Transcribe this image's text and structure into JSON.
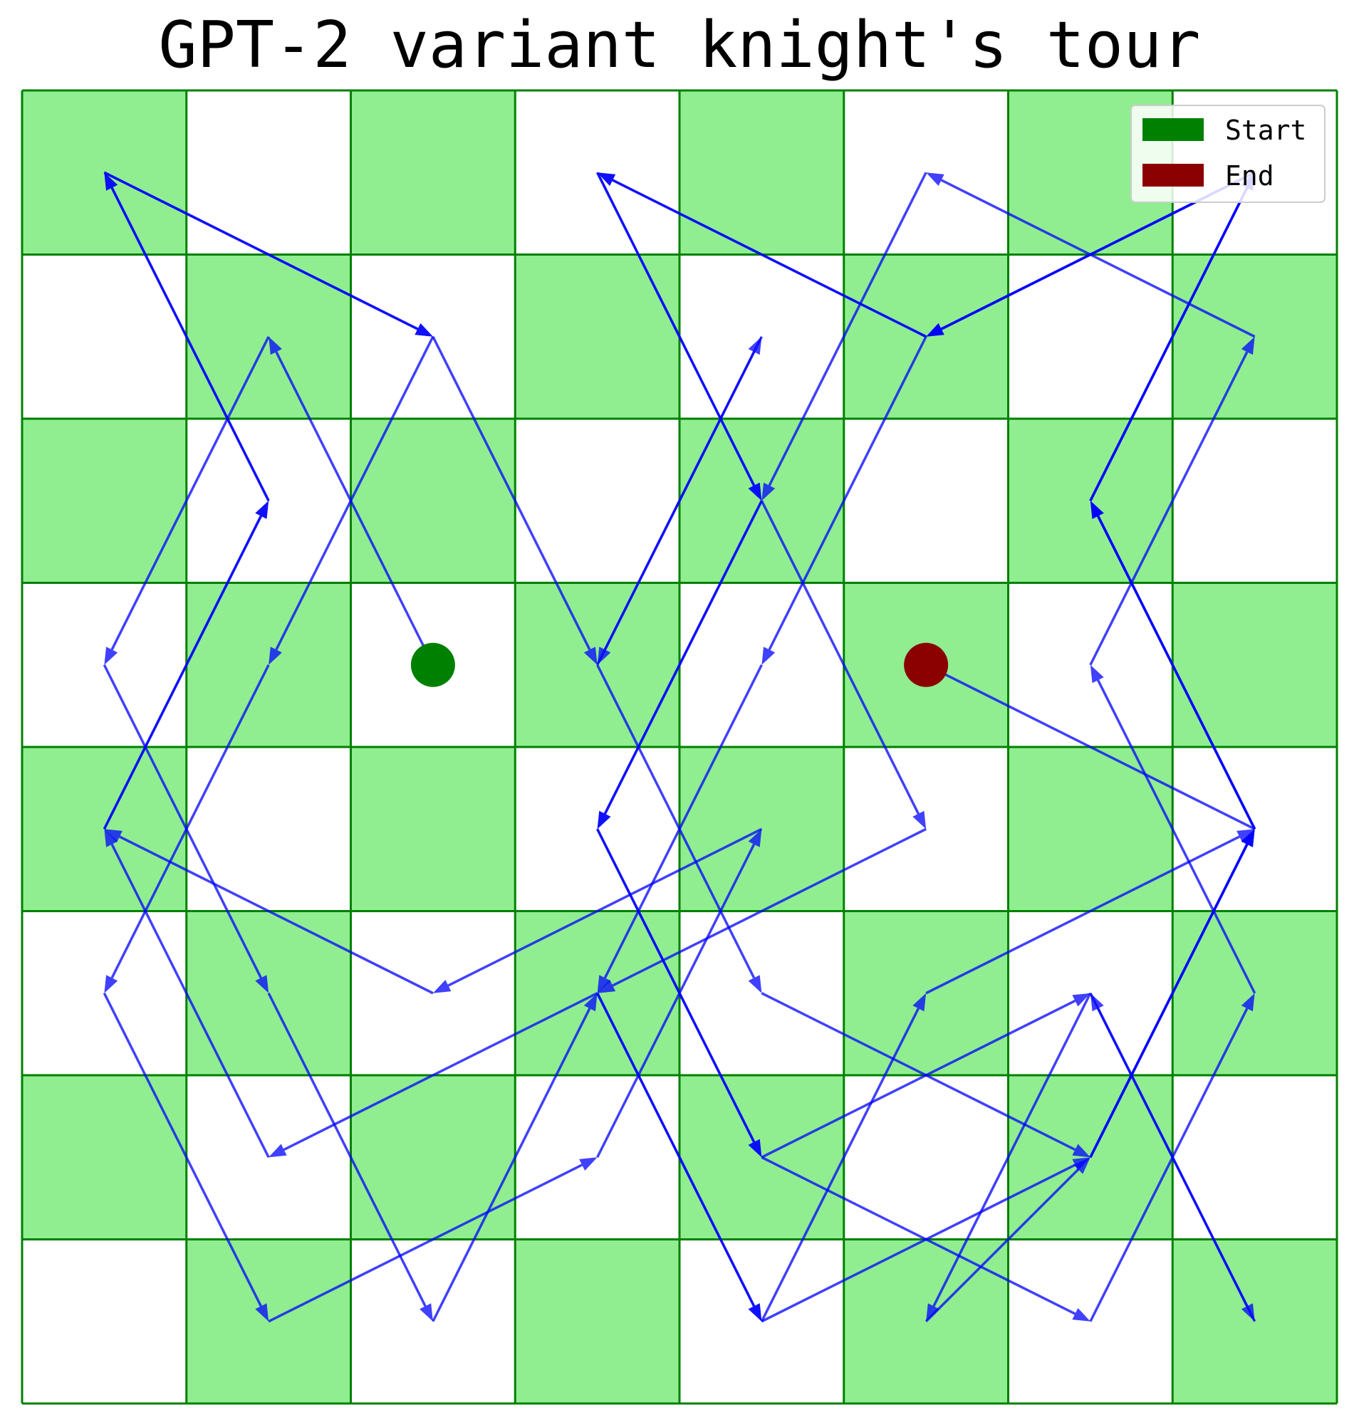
{
  "chart_data": {
    "type": "scatter",
    "title": "GPT-2 variant knight's tour",
    "board_size": 8,
    "grid": true,
    "colors": {
      "light_square": "#ffffff",
      "dark_square": "#90ee90",
      "grid_line": "#008000",
      "path": "#0000ff",
      "start": "#008000",
      "end": "#8b0000"
    },
    "legend": {
      "placement": "top-right",
      "entries": [
        {
          "label": "Start",
          "color": "#008000"
        },
        {
          "label": "End",
          "color": "#8b0000"
        }
      ]
    },
    "start": [
      2,
      3
    ],
    "end": [
      5,
      3
    ],
    "path": [
      [
        2,
        3
      ],
      [
        1,
        1
      ],
      [
        0,
        3
      ],
      [
        1,
        5
      ],
      [
        2,
        7
      ],
      [
        3,
        5
      ],
      [
        4,
        7
      ],
      [
        5,
        5
      ],
      [
        7,
        4
      ],
      [
        6,
        2
      ],
      [
        7,
        0
      ],
      [
        5,
        1
      ],
      [
        3,
        0
      ],
      [
        4,
        2
      ],
      [
        3,
        4
      ],
      [
        4,
        6
      ],
      [
        6,
        5
      ],
      [
        7,
        7
      ],
      [
        6,
        5
      ],
      [
        5,
        7
      ],
      [
        6,
        6
      ],
      [
        7,
        4
      ],
      [
        6,
        2
      ],
      [
        7,
        0
      ],
      [
        5,
        1
      ],
      [
        4,
        3
      ],
      [
        3,
        5
      ],
      [
        1,
        6
      ],
      [
        0,
        4
      ],
      [
        1,
        2
      ],
      [
        0,
        0
      ],
      [
        2,
        1
      ],
      [
        1,
        3
      ],
      [
        0,
        5
      ],
      [
        1,
        7
      ],
      [
        3,
        6
      ],
      [
        4,
        4
      ],
      [
        2,
        5
      ],
      [
        0,
        4
      ],
      [
        1,
        2
      ],
      [
        0,
        0
      ],
      [
        2,
        1
      ],
      [
        3,
        3
      ],
      [
        4,
        1
      ],
      [
        3,
        3
      ],
      [
        4,
        5
      ],
      [
        6,
        6
      ],
      [
        7,
        4
      ],
      [
        6,
        2
      ],
      [
        7,
        0
      ],
      [
        5,
        1
      ],
      [
        3,
        0
      ],
      [
        4,
        2
      ],
      [
        3,
        4
      ],
      [
        4,
        6
      ],
      [
        6,
        7
      ],
      [
        7,
        5
      ],
      [
        6,
        3
      ],
      [
        7,
        1
      ],
      [
        5,
        0
      ],
      [
        4,
        2
      ],
      [
        5,
        4
      ],
      [
        3,
        5
      ],
      [
        4,
        7
      ],
      [
        6,
        6
      ],
      [
        7,
        4
      ],
      [
        5,
        3
      ]
    ]
  }
}
